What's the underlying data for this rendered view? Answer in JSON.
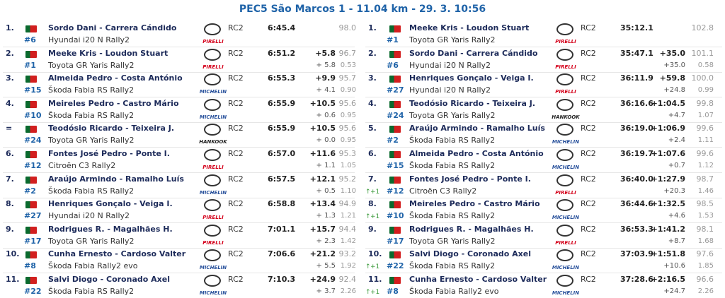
{
  "title": "PEC5 São Marcos 1 - 11.04 km - 29. 3. 10:56",
  "tables": [
    {
      "rows": [
        {
          "pos": "1.",
          "crew": "Sordo Dani - Carrera Cándido",
          "number": "#6",
          "car": "Hyundai i20 N Rally2",
          "tyre": "PIRELLI",
          "class": "RC2",
          "time": "6:45.4",
          "pct": "98.0"
        },
        {
          "pos": "2.",
          "crew": "Meeke Kris - Loudon Stuart",
          "number": "#1",
          "car": "Toyota GR Yaris Rally2",
          "tyre": "PIRELLI",
          "class": "RC2",
          "time": "6:51.2",
          "diff": "+5.8",
          "pct": "96.7",
          "diff_prev": "+ 5.8",
          "gap": "0.53"
        },
        {
          "pos": "3.",
          "crew": "Almeida Pedro - Costa António",
          "number": "#15",
          "car": "Škoda Fabia RS Rally2",
          "tyre": "MICHELIN",
          "class": "RC2",
          "time": "6:55.3",
          "diff": "+9.9",
          "pct": "95.7",
          "diff_prev": "+ 4.1",
          "gap": "0.90"
        },
        {
          "pos": "4.",
          "crew": "Meireles Pedro - Castro Mário",
          "number": "#10",
          "car": "Škoda Fabia RS Rally2",
          "tyre": "MICHELIN",
          "class": "RC2",
          "time": "6:55.9",
          "diff": "+10.5",
          "pct": "95.6",
          "diff_prev": "+ 0.6",
          "gap": "0.95"
        },
        {
          "pos": "=",
          "crew": "Teodósio Ricardo - Teixeira J.",
          "number": "#24",
          "car": "Toyota GR Yaris Rally2",
          "tyre": "HANKOOK",
          "class": "RC2",
          "time": "6:55.9",
          "diff": "+10.5",
          "pct": "95.6",
          "diff_prev": "+ 0.0",
          "gap": "0.95"
        },
        {
          "pos": "6.",
          "crew": "Fontes José Pedro - Ponte I.",
          "number": "#12",
          "car": "Citroën C3 Rally2",
          "tyre": "PIRELLI",
          "class": "RC2",
          "time": "6:57.0",
          "diff": "+11.6",
          "pct": "95.3",
          "diff_prev": "+ 1.1",
          "gap": "1.05"
        },
        {
          "pos": "7.",
          "crew": "Araújo Armindo - Ramalho Luís",
          "number": "#2",
          "car": "Škoda Fabia RS Rally2",
          "tyre": "MICHELIN",
          "class": "RC2",
          "time": "6:57.5",
          "diff": "+12.1",
          "pct": "95.2",
          "diff_prev": "+ 0.5",
          "gap": "1.10"
        },
        {
          "pos": "8.",
          "crew": "Henriques Gonçalo - Veiga I.",
          "number": "#27",
          "car": "Hyundai i20 N Rally2",
          "tyre": "PIRELLI",
          "class": "RC2",
          "time": "6:58.8",
          "diff": "+13.4",
          "pct": "94.9",
          "diff_prev": "+ 1.3",
          "gap": "1.21"
        },
        {
          "pos": "9.",
          "crew": "Rodrigues R. - Magalhães H.",
          "number": "#17",
          "car": "Toyota GR Yaris Rally2",
          "tyre": "PIRELLI",
          "class": "RC2",
          "time": "7:01.1",
          "diff": "+15.7",
          "pct": "94.4",
          "diff_prev": "+ 2.3",
          "gap": "1.42"
        },
        {
          "pos": "10.",
          "crew": "Cunha Ernesto - Cardoso Valter",
          "number": "#8",
          "car": "Škoda Fabia Rally2 evo",
          "tyre": "MICHELIN",
          "class": "RC2",
          "time": "7:06.6",
          "diff": "+21.2",
          "pct": "93.2",
          "diff_prev": "+ 5.5",
          "gap": "1.92"
        },
        {
          "pos": "11.",
          "crew": "Salvi Diogo - Coronado Axel",
          "number": "#22",
          "car": "Škoda Fabia RS Rally2",
          "tyre": "MICHELIN",
          "class": "RC2",
          "time": "7:10.3",
          "diff": "+24.9",
          "pct": "92.4",
          "diff_prev": "+ 3.7",
          "gap": "2.26"
        }
      ]
    },
    {
      "rows": [
        {
          "pos": "1.",
          "crew": "Meeke Kris - Loudon Stuart",
          "number": "#1",
          "car": "Toyota GR Yaris Rally2",
          "tyre": "PIRELLI",
          "class": "RC2",
          "time": "35:12.1",
          "pct": "102.8"
        },
        {
          "pos": "2.",
          "crew": "Sordo Dani - Carrera Cándido",
          "number": "#6",
          "car": "Hyundai i20 N Rally2",
          "tyre": "PIRELLI",
          "class": "RC2",
          "time": "35:47.1",
          "diff": "+35.0",
          "pct": "101.1",
          "diff_prev": "+35.0",
          "gap": "0.58"
        },
        {
          "pos": "3.",
          "crew": "Henriques Gonçalo - Veiga I.",
          "number": "#27",
          "car": "Hyundai i20 N Rally2",
          "tyre": "PIRELLI",
          "class": "RC2",
          "time": "36:11.9",
          "diff": "+59.8",
          "pct": "100.0",
          "diff_prev": "+24.8",
          "gap": "0.99"
        },
        {
          "pos": "4.",
          "crew": "Teodósio Ricardo - Teixeira J.",
          "number": "#24",
          "car": "Toyota GR Yaris Rally2",
          "tyre": "HANKOOK",
          "class": "RC2",
          "time": "36:16.6",
          "diff": "+1:04.5",
          "pct": "99.8",
          "diff_prev": "+4.7",
          "gap": "1.07"
        },
        {
          "pos": "5.",
          "crew": "Araújo Armindo - Ramalho Luís",
          "number": "#2",
          "car": "Škoda Fabia RS Rally2",
          "tyre": "MICHELIN",
          "class": "RC2",
          "time": "36:19.0",
          "diff": "+1:06.9",
          "pct": "99.6",
          "diff_prev": "+2.4",
          "gap": "1.11"
        },
        {
          "pos": "6.",
          "crew": "Almeida Pedro - Costa António",
          "number": "#15",
          "car": "Škoda Fabia RS Rally2",
          "tyre": "MICHELIN",
          "class": "RC2",
          "time": "36:19.7",
          "diff": "+1:07.6",
          "pct": "99.6",
          "diff_prev": "+0.7",
          "gap": "1.12"
        },
        {
          "pos": "7.",
          "crew": "Fontes José Pedro - Ponte I.",
          "number": "#12",
          "car": "Citroën C3 Rally2",
          "tyre": "PIRELLI",
          "class": "RC2",
          "time": "36:40.0",
          "diff": "+1:27.9",
          "pct": "98.7",
          "diff_prev": "+20.3",
          "gap": "1.46",
          "change": "+1"
        },
        {
          "pos": "8.",
          "crew": "Meireles Pedro - Castro Mário",
          "number": "#10",
          "car": "Škoda Fabia RS Rally2",
          "tyre": "MICHELIN",
          "class": "RC2",
          "time": "36:44.6",
          "diff": "+1:32.5",
          "pct": "98.5",
          "diff_prev": "+4.6",
          "gap": "1.53",
          "change": "+1"
        },
        {
          "pos": "9.",
          "crew": "Rodrigues R. - Magalhães H.",
          "number": "#17",
          "car": "Toyota GR Yaris Rally2",
          "tyre": "PIRELLI",
          "class": "RC2",
          "time": "36:53.3",
          "diff": "+1:41.2",
          "pct": "98.1",
          "diff_prev": "+8.7",
          "gap": "1.68"
        },
        {
          "pos": "10.",
          "crew": "Salvi Diogo - Coronado Axel",
          "number": "#22",
          "car": "Škoda Fabia RS Rally2",
          "tyre": "MICHELIN",
          "class": "RC2",
          "time": "37:03.9",
          "diff": "+1:51.8",
          "pct": "97.6",
          "diff_prev": "+10.6",
          "gap": "1.85",
          "change": "+1"
        },
        {
          "pos": "11.",
          "crew": "Cunha Ernesto - Cardoso Valter",
          "number": "#8",
          "car": "Škoda Fabia Rally2 evo",
          "tyre": "MICHELIN",
          "class": "RC2",
          "time": "37:28.6",
          "diff": "+2:16.5",
          "pct": "96.6",
          "diff_prev": "+24.7",
          "gap": "2.26",
          "change": "+1"
        }
      ]
    }
  ]
}
